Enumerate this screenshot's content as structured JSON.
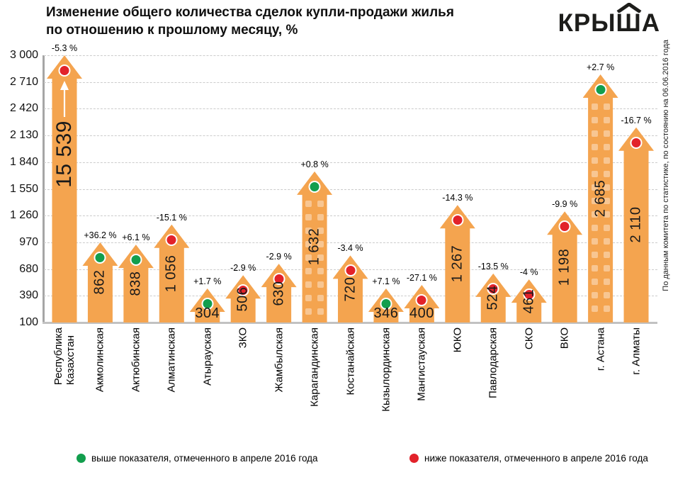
{
  "header": {
    "title": "Изменение общего количества сделок купли-продажи жилья\nпо отношению к прошлому месяцу, %",
    "logo": {
      "text": "КРЫША",
      "icon": "roof-chevron"
    }
  },
  "source_note": "По данным комитета по статистике, по состоянию на 06.06.2016 года",
  "legend": {
    "items": [
      {
        "dot_color": "#129e4d",
        "label": "выше показателя, отмеченного в апреле 2016 года"
      },
      {
        "dot_color": "#e2222a",
        "label": "ниже показателя, отмеченного в апреле 2016 года"
      }
    ]
  },
  "chart_data": {
    "type": "bar",
    "title": "Изменение общего количества сделок купли-продажи жилья по отношению к прошлому месяцу, %",
    "grid": "horizontal-dashed",
    "legend_position": "bottom",
    "bar_color": "#f4a44f",
    "dot_colors": {
      "green": "#129e4d",
      "red": "#e2222a"
    },
    "dot_meaning": {
      "green": "выше показателя, отмеченного в апреле 2016 года",
      "red": "ниже показателя, отмеченного в апреле 2016 года"
    },
    "y_axis": {
      "min": 100,
      "max": 3000,
      "ticks": [
        3000,
        2710,
        2420,
        2130,
        1840,
        1550,
        1260,
        970,
        680,
        390,
        100
      ]
    },
    "bars": [
      {
        "category": "Республика Казахстан",
        "category_display": "Республика\nКазахстан",
        "value": 15539,
        "value_label": "15 539",
        "pct_change": "-5.3 %",
        "dot": "red",
        "overflow": true
      },
      {
        "category": "Акмолинская",
        "value": 862,
        "value_label": "862",
        "pct_change": "+36.2 %",
        "dot": "green"
      },
      {
        "category": "Актюбинская",
        "value": 838,
        "value_label": "838",
        "pct_change": "+6.1 %",
        "dot": "green"
      },
      {
        "category": "Алматинская",
        "value": 1056,
        "value_label": "1 056",
        "pct_change": "-15.1 %",
        "dot": "red"
      },
      {
        "category": "Атырауская",
        "value": 304,
        "value_label": "304",
        "pct_change": "+1.7 %",
        "dot": "green",
        "horizontal_label": true
      },
      {
        "category": "ЗКО",
        "value": 506,
        "value_label": "506",
        "pct_change": "-2.9 %",
        "dot": "red"
      },
      {
        "category": "Жамбылская",
        "value": 630,
        "value_label": "630",
        "pct_change": "-2.9 %",
        "dot": "red"
      },
      {
        "category": "Карагандинская",
        "value": 1632,
        "value_label": "1 632",
        "pct_change": "+0.8 %",
        "dot": "green",
        "windows": true
      },
      {
        "category": "Костанайская",
        "value": 720,
        "value_label": "720",
        "pct_change": "-3.4 %",
        "dot": "red"
      },
      {
        "category": "Кызылординская",
        "value": 346,
        "value_label": "346",
        "pct_change": "+7.1 %",
        "dot": "green",
        "horizontal_label": true
      },
      {
        "category": "Мангистауская",
        "value": 400,
        "value_label": "400",
        "pct_change": "-27.1 %",
        "dot": "red",
        "horizontal_label": true
      },
      {
        "category": "ЮКО",
        "value": 1267,
        "value_label": "1 267",
        "pct_change": "-14.3 %",
        "dot": "red"
      },
      {
        "category": "Павлодарская",
        "value": 524,
        "value_label": "524",
        "pct_change": "-13.5 %",
        "dot": "red"
      },
      {
        "category": "СКО",
        "value": 461,
        "value_label": "461",
        "pct_change": "-4 %",
        "dot": "red"
      },
      {
        "category": "ВКО",
        "value": 1198,
        "value_label": "1 198",
        "pct_change": "-9.9 %",
        "dot": "red"
      },
      {
        "category": "г. Астана",
        "value": 2685,
        "value_label": "2 685",
        "pct_change": "+2.7 %",
        "dot": "green",
        "windows": true
      },
      {
        "category": "г. Алматы",
        "value": 2110,
        "value_label": "2 110",
        "pct_change": "-16.7 %",
        "dot": "red"
      }
    ]
  }
}
